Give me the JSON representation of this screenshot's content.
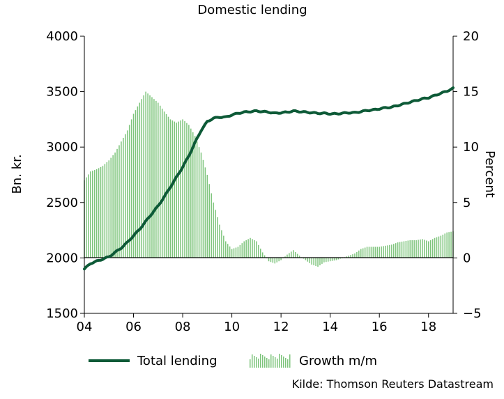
{
  "chart_data": {
    "type": "line+bar",
    "title": "Domestic lending",
    "ylabel_left": "Bn. kr.",
    "ylabel_right": "Percent",
    "xlim": [
      2004,
      2019
    ],
    "ylim_left": [
      1500,
      4000
    ],
    "ylim_right": [
      -5,
      20
    ],
    "xticks": [
      2004,
      2006,
      2008,
      2010,
      2012,
      2014,
      2016,
      2018
    ],
    "xtick_labels": [
      "04",
      "06",
      "08",
      "10",
      "12",
      "14",
      "16",
      "18"
    ],
    "yticks_left": [
      1500,
      2000,
      2500,
      3000,
      3500,
      4000
    ],
    "ytick_labels_left": [
      "1500",
      "2000",
      "2500",
      "3000",
      "3500",
      "4000"
    ],
    "yticks_right": [
      -5,
      0,
      5,
      10,
      15,
      20
    ],
    "ytick_labels_right": [
      "−5",
      "0",
      "5",
      "10",
      "15",
      "20"
    ],
    "legend_placement": "bottom",
    "source": "Kilde: Thomson Reuters Datastream",
    "colors": {
      "line": "#0d5a37",
      "bars": "#7dc47b"
    },
    "series": [
      {
        "name": "Total lending",
        "kind": "line",
        "axis": "left",
        "points": [
          [
            2004.0,
            1900
          ],
          [
            2004.25,
            1950
          ],
          [
            2004.5,
            1970
          ],
          [
            2004.75,
            1990
          ],
          [
            2005.0,
            2010
          ],
          [
            2005.25,
            2050
          ],
          [
            2005.5,
            2090
          ],
          [
            2005.75,
            2140
          ],
          [
            2006.0,
            2200
          ],
          [
            2006.25,
            2260
          ],
          [
            2006.5,
            2330
          ],
          [
            2006.75,
            2400
          ],
          [
            2007.0,
            2470
          ],
          [
            2007.25,
            2550
          ],
          [
            2007.5,
            2640
          ],
          [
            2007.75,
            2730
          ],
          [
            2008.0,
            2820
          ],
          [
            2008.25,
            2920
          ],
          [
            2008.5,
            3040
          ],
          [
            2008.75,
            3150
          ],
          [
            2009.0,
            3230
          ],
          [
            2009.25,
            3260
          ],
          [
            2009.5,
            3270
          ],
          [
            2009.75,
            3270
          ],
          [
            2010.0,
            3290
          ],
          [
            2010.25,
            3305
          ],
          [
            2010.5,
            3315
          ],
          [
            2010.75,
            3320
          ],
          [
            2011.0,
            3325
          ],
          [
            2011.25,
            3320
          ],
          [
            2011.5,
            3315
          ],
          [
            2011.75,
            3305
          ],
          [
            2012.0,
            3310
          ],
          [
            2012.25,
            3315
          ],
          [
            2012.5,
            3325
          ],
          [
            2012.75,
            3320
          ],
          [
            2013.0,
            3315
          ],
          [
            2013.25,
            3310
          ],
          [
            2013.5,
            3305
          ],
          [
            2013.75,
            3305
          ],
          [
            2014.0,
            3300
          ],
          [
            2014.25,
            3300
          ],
          [
            2014.5,
            3305
          ],
          [
            2014.75,
            3310
          ],
          [
            2015.0,
            3310
          ],
          [
            2015.25,
            3320
          ],
          [
            2015.5,
            3330
          ],
          [
            2015.75,
            3335
          ],
          [
            2016.0,
            3345
          ],
          [
            2016.25,
            3355
          ],
          [
            2016.5,
            3360
          ],
          [
            2016.75,
            3375
          ],
          [
            2017.0,
            3390
          ],
          [
            2017.25,
            3405
          ],
          [
            2017.5,
            3420
          ],
          [
            2017.75,
            3435
          ],
          [
            2018.0,
            3445
          ],
          [
            2018.25,
            3465
          ],
          [
            2018.5,
            3485
          ],
          [
            2018.75,
            3505
          ],
          [
            2019.0,
            3530
          ]
        ]
      },
      {
        "name": "Growth m/m",
        "kind": "bar",
        "axis": "right",
        "points": [
          [
            2004.0,
            7.0
          ],
          [
            2004.25,
            7.8
          ],
          [
            2004.5,
            8.0
          ],
          [
            2004.75,
            8.3
          ],
          [
            2005.0,
            8.8
          ],
          [
            2005.25,
            9.5
          ],
          [
            2005.5,
            10.5
          ],
          [
            2005.75,
            11.5
          ],
          [
            2006.0,
            13.0
          ],
          [
            2006.25,
            14.0
          ],
          [
            2006.5,
            15.0
          ],
          [
            2006.75,
            14.5
          ],
          [
            2007.0,
            14.0
          ],
          [
            2007.25,
            13.2
          ],
          [
            2007.5,
            12.5
          ],
          [
            2007.75,
            12.2
          ],
          [
            2008.0,
            12.5
          ],
          [
            2008.25,
            12.0
          ],
          [
            2008.5,
            11.0
          ],
          [
            2008.75,
            9.5
          ],
          [
            2009.0,
            7.5
          ],
          [
            2009.25,
            5.0
          ],
          [
            2009.5,
            3.0
          ],
          [
            2009.75,
            1.5
          ],
          [
            2010.0,
            0.8
          ],
          [
            2010.25,
            1.0
          ],
          [
            2010.5,
            1.5
          ],
          [
            2010.75,
            1.8
          ],
          [
            2011.0,
            1.5
          ],
          [
            2011.25,
            0.5
          ],
          [
            2011.5,
            -0.3
          ],
          [
            2011.75,
            -0.5
          ],
          [
            2012.0,
            -0.2
          ],
          [
            2012.25,
            0.3
          ],
          [
            2012.5,
            0.7
          ],
          [
            2012.75,
            0.2
          ],
          [
            2013.0,
            -0.2
          ],
          [
            2013.25,
            -0.6
          ],
          [
            2013.5,
            -0.8
          ],
          [
            2013.75,
            -0.4
          ],
          [
            2014.0,
            -0.3
          ],
          [
            2014.25,
            -0.2
          ],
          [
            2014.5,
            0.0
          ],
          [
            2014.75,
            0.2
          ],
          [
            2015.0,
            0.4
          ],
          [
            2015.25,
            0.8
          ],
          [
            2015.5,
            1.0
          ],
          [
            2015.75,
            1.0
          ],
          [
            2016.0,
            1.0
          ],
          [
            2016.25,
            1.1
          ],
          [
            2016.5,
            1.2
          ],
          [
            2016.75,
            1.4
          ],
          [
            2017.0,
            1.5
          ],
          [
            2017.25,
            1.6
          ],
          [
            2017.5,
            1.6
          ],
          [
            2017.75,
            1.7
          ],
          [
            2018.0,
            1.5
          ],
          [
            2018.25,
            1.8
          ],
          [
            2018.5,
            2.0
          ],
          [
            2018.75,
            2.3
          ],
          [
            2019.0,
            2.4
          ]
        ]
      }
    ]
  }
}
